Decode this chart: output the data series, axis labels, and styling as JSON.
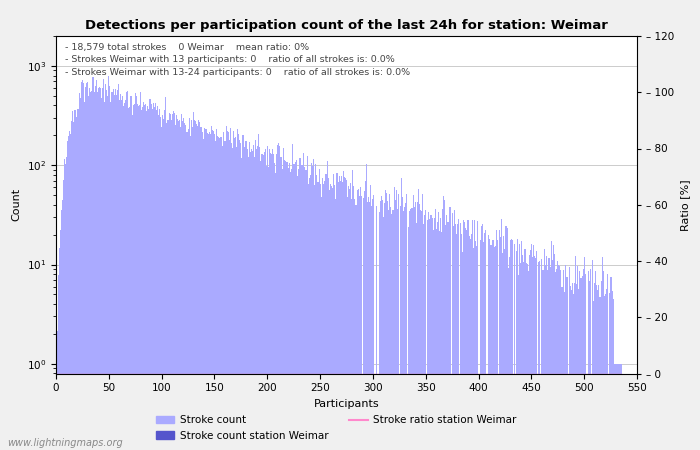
{
  "title": "Detections per participation count of the last 24h for station: Weimar",
  "xlabel": "Participants",
  "ylabel_left": "Count",
  "ylabel_right": "Ratio [%]",
  "annotation_lines": [
    "18,579 total strokes    0 Weimar    mean ratio: 0%",
    "Strokes Weimar with 13 participants: 0    ratio of all strokes is: 0.0%",
    "Strokes Weimar with 13-24 participants: 0    ratio of all strokes is: 0.0%"
  ],
  "bar_color_light": "#aaaaff",
  "bar_color_dark": "#5555cc",
  "ratio_line_color": "#ff88cc",
  "background_color": "#ffffff",
  "fig_background": "#f0f0f0",
  "legend_labels": [
    "Stroke count",
    "Stroke count station Weimar",
    "Stroke ratio station Weimar"
  ],
  "watermark": "www.lightningmaps.org",
  "xlim": [
    0,
    550
  ],
  "ylim_right": [
    0,
    120
  ],
  "x_ticks": [
    0,
    50,
    100,
    150,
    200,
    250,
    300,
    350,
    400,
    450,
    500,
    550
  ],
  "right_ticks": [
    0,
    20,
    40,
    60,
    80,
    100,
    120
  ]
}
